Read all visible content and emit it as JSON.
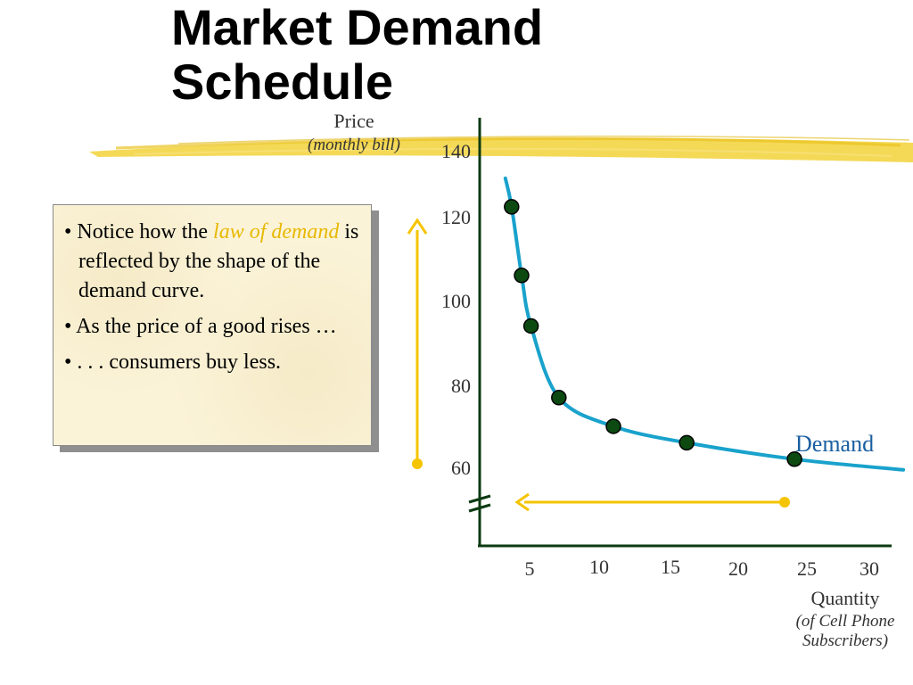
{
  "title": "Market Demand Schedule",
  "colors": {
    "curve": "#19a2cc",
    "point": "#0c4a12",
    "arrow": "#f5c400",
    "axis": "#0c3a12",
    "brush": "#f2d23a",
    "demand_label": "#1a5fa0"
  },
  "note": {
    "b1_pre": "Notice how the ",
    "b1_hl": "law of demand",
    "b1_post": " is reflected by the shape of the demand curve.",
    "b2": "As the price of a good rises …",
    "b3": ". . . consumers buy less."
  },
  "chart_data": {
    "type": "line",
    "ylabel": "Price",
    "ylabel_sub": "(monthly bill)",
    "xlabel": "Quantity",
    "xlabel_sub": "(of Cell Phone Subscribers)",
    "y_ticks": [
      "140",
      "120",
      "100",
      "80",
      "60"
    ],
    "x_ticks": [
      "5",
      "10",
      "15",
      "20",
      "25",
      "30"
    ],
    "series": [
      {
        "name": "Demand",
        "points": [
          {
            "x": 3.2,
            "y": 123
          },
          {
            "x": 4.2,
            "y": 106
          },
          {
            "x": 5.1,
            "y": 94
          },
          {
            "x": 7.1,
            "y": 77
          },
          {
            "x": 11.0,
            "y": 70
          },
          {
            "x": 16.2,
            "y": 66
          },
          {
            "x": 24.1,
            "y": 62
          }
        ]
      }
    ],
    "ylim": [
      50,
      140
    ],
    "xlim": [
      0,
      30
    ]
  }
}
